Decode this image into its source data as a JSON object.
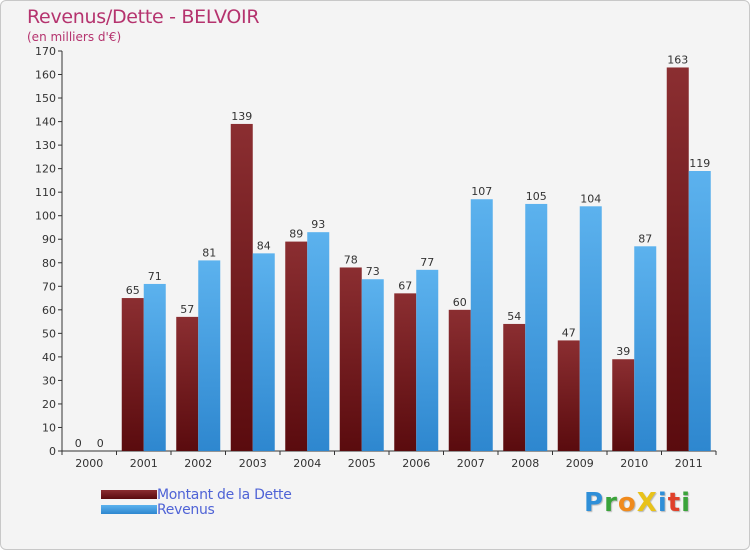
{
  "chart_data": {
    "type": "bar",
    "title": "Revenus/Dette - BELVOIR",
    "subtitle": "(en milliers d'€)",
    "categories": [
      "2000",
      "2001",
      "2002",
      "2003",
      "2004",
      "2005",
      "2006",
      "2007",
      "2008",
      "2009",
      "2010",
      "2011"
    ],
    "series": [
      {
        "name": "Montant de la Dette",
        "color": "#7a1a1d",
        "values": [
          0,
          65,
          57,
          139,
          89,
          78,
          67,
          60,
          54,
          47,
          39,
          163
        ]
      },
      {
        "name": "Revenus",
        "color": "#4aa3e6",
        "values": [
          0,
          71,
          81,
          84,
          93,
          73,
          77,
          107,
          105,
          104,
          87,
          119
        ]
      }
    ],
    "ylim": [
      0,
      170
    ],
    "yticks": [
      0,
      10,
      20,
      30,
      40,
      50,
      60,
      70,
      80,
      90,
      100,
      110,
      120,
      130,
      140,
      150,
      160,
      170
    ],
    "grid": false,
    "legend_position": "bottom-left"
  },
  "logo": {
    "letters": [
      {
        "ch": "P",
        "color": "#2f8fd8"
      },
      {
        "ch": "r",
        "color": "#3aa33a"
      },
      {
        "ch": "o",
        "color": "#f08a1c"
      },
      {
        "ch": "X",
        "color": "#e8c21a"
      },
      {
        "ch": "i",
        "color": "#2f8fd8"
      },
      {
        "ch": "t",
        "color": "#e0402a"
      },
      {
        "ch": "i",
        "color": "#3aa33a"
      }
    ]
  }
}
